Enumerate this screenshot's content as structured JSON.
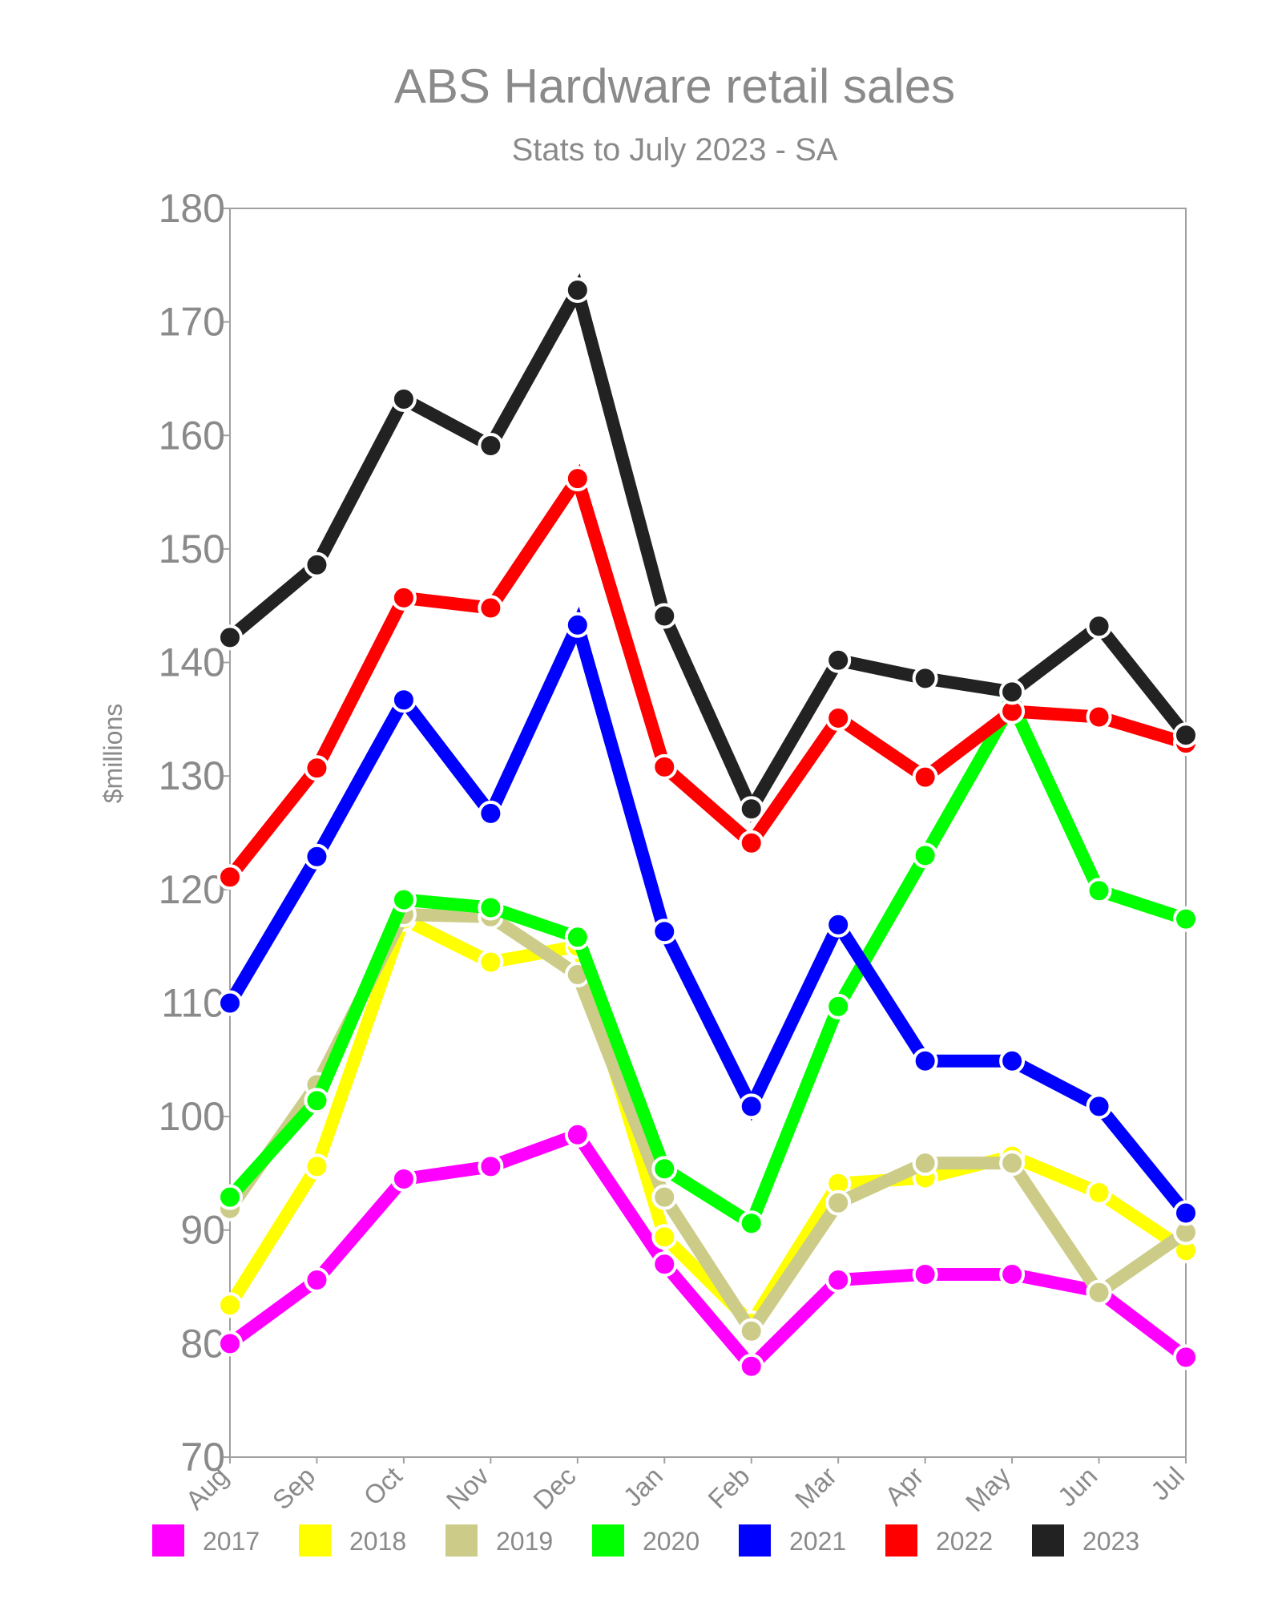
{
  "chart_data": {
    "type": "line",
    "title": "ABS Hardware retail sales",
    "subtitle": "Stats to July 2023 - SA",
    "xlabel": "",
    "ylabel": "$millions",
    "ylim": [
      70,
      180
    ],
    "yticks": [
      70,
      80,
      90,
      100,
      110,
      120,
      130,
      140,
      150,
      160,
      170,
      180
    ],
    "grid": false,
    "legend_position": "bottom",
    "categories": [
      "Aug",
      "Sep",
      "Oct",
      "Nov",
      "Dec",
      "Jan",
      "Feb",
      "Mar",
      "Apr",
      "May",
      "Jun",
      "Jul"
    ],
    "series": [
      {
        "name": "2017",
        "color": "#ff00ff",
        "values": [
          80.0,
          85.6,
          94.5,
          95.6,
          98.4,
          87.0,
          78.0,
          85.6,
          86.1,
          86.1,
          84.6,
          78.8
        ]
      },
      {
        "name": "2018",
        "color": "#ffff00",
        "values": [
          83.4,
          95.6,
          117.4,
          113.6,
          115.0,
          89.4,
          81.8,
          94.1,
          94.6,
          96.5,
          93.3,
          88.2
        ]
      },
      {
        "name": "2019",
        "color": "#cccc88",
        "values": [
          91.9,
          102.8,
          117.8,
          117.6,
          112.5,
          92.9,
          81.1,
          92.4,
          95.9,
          95.9,
          84.5,
          89.8
        ]
      },
      {
        "name": "2020",
        "color": "#00ff00",
        "values": [
          92.9,
          101.4,
          119.1,
          118.4,
          115.8,
          95.4,
          90.6,
          109.7,
          123.0,
          136.4,
          119.9,
          117.4
        ]
      },
      {
        "name": "2021",
        "color": "#0000ff",
        "values": [
          110.0,
          122.9,
          136.7,
          126.7,
          143.3,
          116.3,
          100.9,
          116.9,
          104.9,
          104.9,
          100.9,
          91.5
        ]
      },
      {
        "name": "2022",
        "color": "#ff0000",
        "values": [
          121.1,
          130.7,
          145.7,
          144.8,
          156.2,
          130.8,
          124.1,
          135.1,
          129.9,
          135.7,
          135.2,
          132.9
        ]
      },
      {
        "name": "2023",
        "color": "#222222",
        "values": [
          142.2,
          148.6,
          163.2,
          159.1,
          172.8,
          144.1,
          127.1,
          140.2,
          138.6,
          137.4,
          143.2,
          133.6
        ]
      }
    ]
  }
}
